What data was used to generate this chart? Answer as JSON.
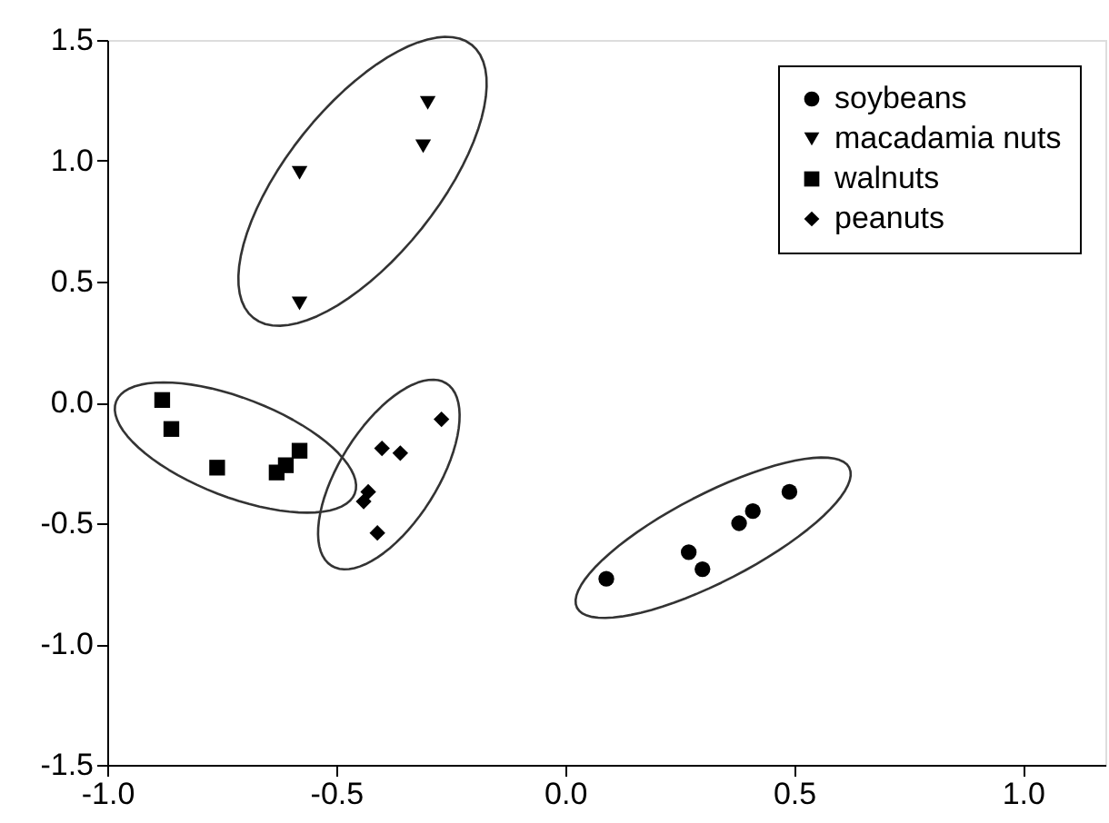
{
  "chart_data": {
    "type": "scatter",
    "legend": "top right",
    "grid": false,
    "xlim": [
      -1.0,
      1.18
    ],
    "ylim": [
      -1.5,
      1.5
    ],
    "xticks": [
      {
        "value": -1,
        "label": "-1.0"
      },
      {
        "value": -0.5,
        "label": "-0.5"
      },
      {
        "value": 0,
        "label": "0.0"
      },
      {
        "value": 0.5,
        "label": "0.5"
      },
      {
        "value": 1,
        "label": "1.0"
      }
    ],
    "yticks": [
      {
        "value": -1.5,
        "label": "-1.5"
      },
      {
        "value": -1,
        "label": "-1.0"
      },
      {
        "value": -0.5,
        "label": "-0.5"
      },
      {
        "value": 0,
        "label": "0.0"
      },
      {
        "value": 0.5,
        "label": "0.5"
      },
      {
        "value": 1,
        "label": "1.0"
      },
      {
        "value": 1.5,
        "label": "1.5"
      }
    ],
    "series": [
      {
        "name": "soybeans",
        "color": "#000000",
        "marker": "circle",
        "x": [
          0.09,
          0.27,
          0.3,
          0.38,
          0.41,
          0.49
        ],
        "values": [
          -0.73,
          -0.62,
          -0.69,
          -0.5,
          -0.45,
          -0.37
        ]
      },
      {
        "name": "macadamia nuts",
        "color": "#000000",
        "marker": "triangle",
        "x": [
          -0.3,
          -0.31,
          -0.58,
          -0.58
        ],
        "values": [
          1.24,
          1.06,
          0.95,
          0.41
        ]
      },
      {
        "name": "walnuts",
        "color": "#000000",
        "marker": "square",
        "x": [
          -0.88,
          -0.86,
          -0.76,
          -0.58,
          -0.61,
          -0.63
        ],
        "values": [
          0.01,
          -0.11,
          -0.27,
          -0.2,
          -0.26,
          -0.29
        ]
      },
      {
        "name": "peanuts",
        "color": "#000000",
        "marker": "diamond",
        "x": [
          -0.27,
          -0.4,
          -0.36,
          -0.43,
          -0.44,
          -0.41
        ],
        "values": [
          -0.07,
          -0.19,
          -0.21,
          -0.37,
          -0.41,
          -0.54
        ]
      }
    ]
  }
}
